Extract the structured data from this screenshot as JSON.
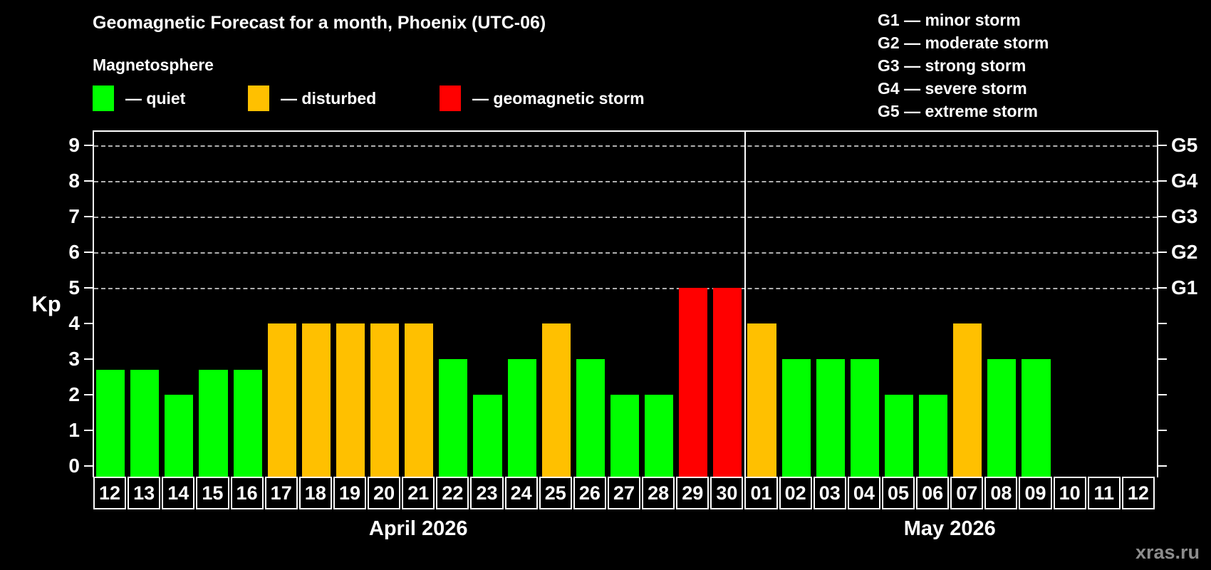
{
  "title": "Geomagnetic Forecast for a month, Phoenix (UTC-06)",
  "legend": {
    "heading": "Magnetosphere",
    "items": [
      {
        "key": "quiet",
        "label": "— quiet",
        "color": "#00ff00"
      },
      {
        "key": "disturbed",
        "label": "— disturbed",
        "color": "#ffc000"
      },
      {
        "key": "storm",
        "label": "— geomagnetic storm",
        "color": "#ff0000"
      }
    ]
  },
  "g_scale_legend": [
    "G1 — minor storm",
    "G2 — moderate storm",
    "G3 — strong storm",
    "G4 — severe storm",
    "G5 — extreme storm"
  ],
  "watermark": "xras.ru",
  "chart_data": {
    "type": "bar",
    "title": "Geomagnetic Forecast for a month, Phoenix (UTC-06)",
    "ylabel": "Kp",
    "ylim": [
      0,
      9
    ],
    "yticks": [
      0,
      1,
      2,
      3,
      4,
      5,
      6,
      7,
      8,
      9
    ],
    "gridlines_at": [
      5,
      6,
      7,
      8,
      9
    ],
    "grid": "dashed horizontal at storm levels only",
    "right_axis": [
      {
        "kp": 5,
        "label": "G1"
      },
      {
        "kp": 6,
        "label": "G2"
      },
      {
        "kp": 7,
        "label": "G3"
      },
      {
        "kp": 8,
        "label": "G4"
      },
      {
        "kp": 9,
        "label": "G5"
      }
    ],
    "status_colors": {
      "quiet": "#00ff00",
      "disturbed": "#ffc000",
      "storm": "#ff0000"
    },
    "months": [
      {
        "label": "April 2026",
        "day_count": 19
      },
      {
        "label": "May 2026",
        "day_count": 12
      }
    ],
    "categories": [
      "12",
      "13",
      "14",
      "15",
      "16",
      "17",
      "18",
      "19",
      "20",
      "21",
      "22",
      "23",
      "24",
      "25",
      "26",
      "27",
      "28",
      "29",
      "30",
      "01",
      "02",
      "03",
      "04",
      "05",
      "06",
      "07",
      "08",
      "09",
      "10",
      "11",
      "12"
    ],
    "values": [
      2.7,
      2.7,
      2,
      2.7,
      2.7,
      4,
      4,
      4,
      4,
      4,
      3,
      2,
      3,
      4,
      3,
      2,
      2,
      5,
      5,
      4,
      3,
      3,
      3,
      2,
      2,
      4,
      3,
      3,
      null,
      null,
      null
    ],
    "statuses": [
      "quiet",
      "quiet",
      "quiet",
      "quiet",
      "quiet",
      "disturbed",
      "disturbed",
      "disturbed",
      "disturbed",
      "disturbed",
      "quiet",
      "quiet",
      "quiet",
      "disturbed",
      "quiet",
      "quiet",
      "quiet",
      "storm",
      "storm",
      "disturbed",
      "quiet",
      "quiet",
      "quiet",
      "quiet",
      "quiet",
      "disturbed",
      "quiet",
      "quiet",
      null,
      null,
      null
    ]
  }
}
